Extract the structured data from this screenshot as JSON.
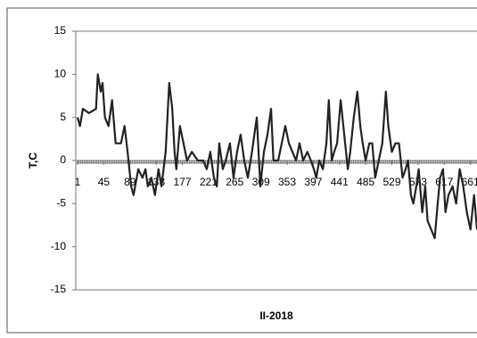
{
  "chart_data": {
    "type": "line",
    "title": "II-2018",
    "y_label": "T,C",
    "x": [
      1,
      5,
      10,
      20,
      32,
      35,
      40,
      43,
      47,
      53,
      59,
      65,
      74,
      80,
      85,
      91,
      95,
      103,
      110,
      115,
      119,
      125,
      131,
      137,
      142,
      149,
      155,
      160,
      164,
      167,
      173,
      179,
      185,
      193,
      203,
      212,
      218,
      224,
      230,
      235,
      239,
      245,
      250,
      257,
      263,
      269,
      275,
      281,
      287,
      294,
      302,
      308,
      314,
      320,
      326,
      330,
      338,
      344,
      350,
      356,
      362,
      368,
      374,
      380,
      387,
      393,
      398,
      402,
      407,
      413,
      419,
      423,
      428,
      432,
      437,
      443,
      449,
      455,
      459,
      465,
      471,
      476,
      480,
      485,
      491,
      496,
      501,
      507,
      513,
      519,
      523,
      529,
      535,
      541,
      547,
      552,
      556,
      561,
      565,
      570,
      574,
      580,
      585,
      589,
      595,
      601,
      606,
      610,
      615,
      619,
      624,
      631,
      637,
      643,
      649,
      655,
      661,
      667,
      672
    ],
    "series": [
      {
        "name": "T,C",
        "color": "#222222",
        "values": [
          5,
          4,
          6,
          5.5,
          6,
          10,
          8,
          9,
          5,
          4,
          7,
          2,
          2,
          4,
          1,
          -3,
          -4,
          -1,
          -2,
          -1,
          -3,
          -2,
          -4,
          -1,
          -3,
          1,
          9,
          6,
          1,
          -1,
          4,
          2,
          0,
          1,
          0,
          0,
          -1,
          1,
          -2,
          -3,
          2,
          -1,
          0,
          2,
          -2,
          1,
          3,
          0,
          -2,
          1,
          5,
          -3,
          1,
          3,
          6,
          0,
          0,
          2,
          4,
          2,
          1,
          0,
          2,
          0,
          1,
          0,
          -1,
          -2,
          0,
          -1,
          2,
          7,
          0,
          1,
          2,
          7,
          3,
          -1,
          1,
          5,
          8,
          4,
          2,
          0,
          2,
          2,
          -2,
          0,
          2,
          8,
          4,
          1,
          2,
          2,
          -2,
          -1,
          0,
          -4,
          -5,
          -3,
          -1,
          -6,
          -3,
          -7,
          -8,
          -9,
          -5,
          -2,
          -1,
          -6,
          -4,
          -3,
          -5,
          -1,
          -3,
          -6,
          -8,
          -4,
          -8
        ]
      }
    ],
    "xlim": [
      1,
      672
    ],
    "xticks": [
      1,
      45,
      89,
      133,
      177,
      221,
      265,
      309,
      353,
      397,
      441,
      485,
      529,
      573,
      617,
      661
    ],
    "ylim": [
      -15,
      15
    ],
    "yticks": [
      -15,
      -10,
      -5,
      0,
      5,
      10,
      15
    ]
  }
}
